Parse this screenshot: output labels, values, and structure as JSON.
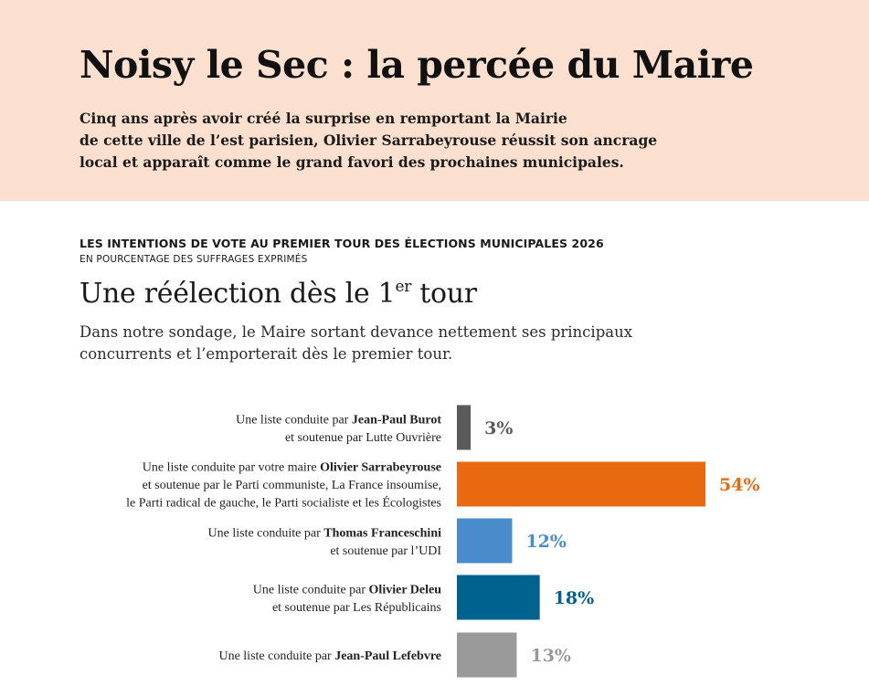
{
  "header": {
    "headline": "Noisy le Sec : la percée du Maire",
    "deck_lines": [
      "Cinq ans après avoir créé la surprise en remportant la Mairie",
      "de cette ville de l’est parisien, Olivier Sarrabeyrouse réussit son ancrage",
      "local et apparaît comme le grand favori des prochaines municipales."
    ]
  },
  "kicker": "LES INTENTIONS DE VOTE AU PREMIER TOUR DES ÉLECTIONS MUNICIPALES 2026",
  "kicker_sub": "EN POURCENTAGE DES SUFFRAGES EXPRIMÉS",
  "chart_title": {
    "text": "Une réélection dès le 1",
    "sup": "er",
    "tail": " tour"
  },
  "chart_sub_lines": [
    "Dans notre sondage, le Maire sortant devance nettement ses principaux",
    "concurrents et l’emporterait dès le premier tour."
  ],
  "chart_data": {
    "type": "bar",
    "orientation": "horizontal",
    "unit": "%",
    "xlim": [
      0,
      54
    ],
    "grid": false,
    "categories": [
      {
        "lines": [
          [
            [
              "Une liste conduite par ",
              false
            ],
            [
              "Jean-Paul Burot",
              true
            ]
          ],
          [
            [
              "et soutenue par Lutte Ouvrière",
              false
            ]
          ]
        ]
      },
      {
        "lines": [
          [
            [
              "Une liste conduite par votre maire ",
              false
            ],
            [
              "Olivier Sarrabeyrouse",
              true
            ]
          ],
          [
            [
              "et soutenue par le Parti communiste, La France insoumise,",
              false
            ]
          ],
          [
            [
              "le Parti radical de gauche, le Parti socialiste et les Écologistes",
              false
            ]
          ]
        ]
      },
      {
        "lines": [
          [
            [
              "Une liste conduite par ",
              false
            ],
            [
              "Thomas Franceschini",
              true
            ]
          ],
          [
            [
              "et soutenue par l’UDI",
              false
            ]
          ]
        ]
      },
      {
        "lines": [
          [
            [
              "Une liste conduite par ",
              false
            ],
            [
              "Olivier Deleu",
              true
            ]
          ],
          [
            [
              "et soutenue par Les Républicains",
              false
            ]
          ]
        ]
      },
      {
        "lines": [
          [
            [
              "Une liste conduite par ",
              false
            ],
            [
              "Jean-Paul Lefebvre",
              true
            ]
          ]
        ]
      }
    ],
    "values": [
      3,
      54,
      12,
      18,
      13
    ],
    "value_labels": [
      "3%",
      "54%",
      "12%",
      "18%",
      "13%"
    ],
    "bar_colors": [
      "#5a5a5a",
      "#e8690f",
      "#4a8ccb",
      "#00628f",
      "#9a9a9a"
    ],
    "label_colors": [
      "#5a5a5a",
      "#e8690f",
      "#4a8ccb",
      "#00628f",
      "#9a9a9a"
    ]
  }
}
